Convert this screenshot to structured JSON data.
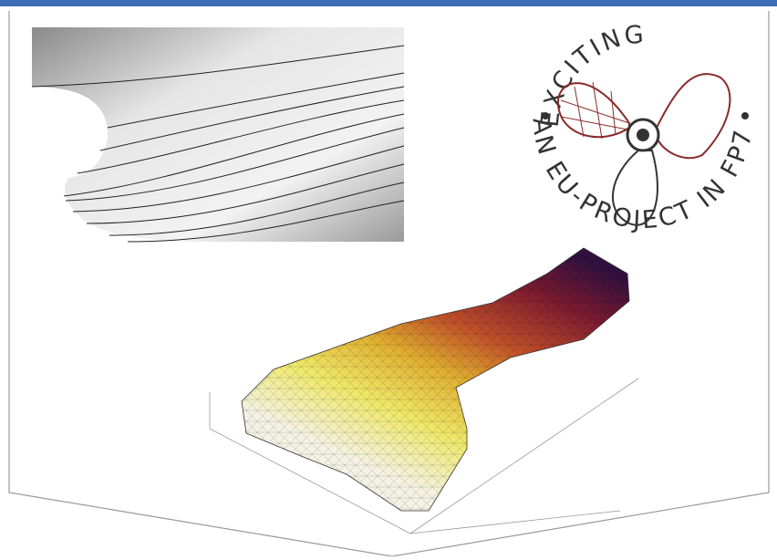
{
  "logo": {
    "top_text": "EXCITING",
    "bottom_text": "AN EU-PROJECT IN FP7"
  }
}
